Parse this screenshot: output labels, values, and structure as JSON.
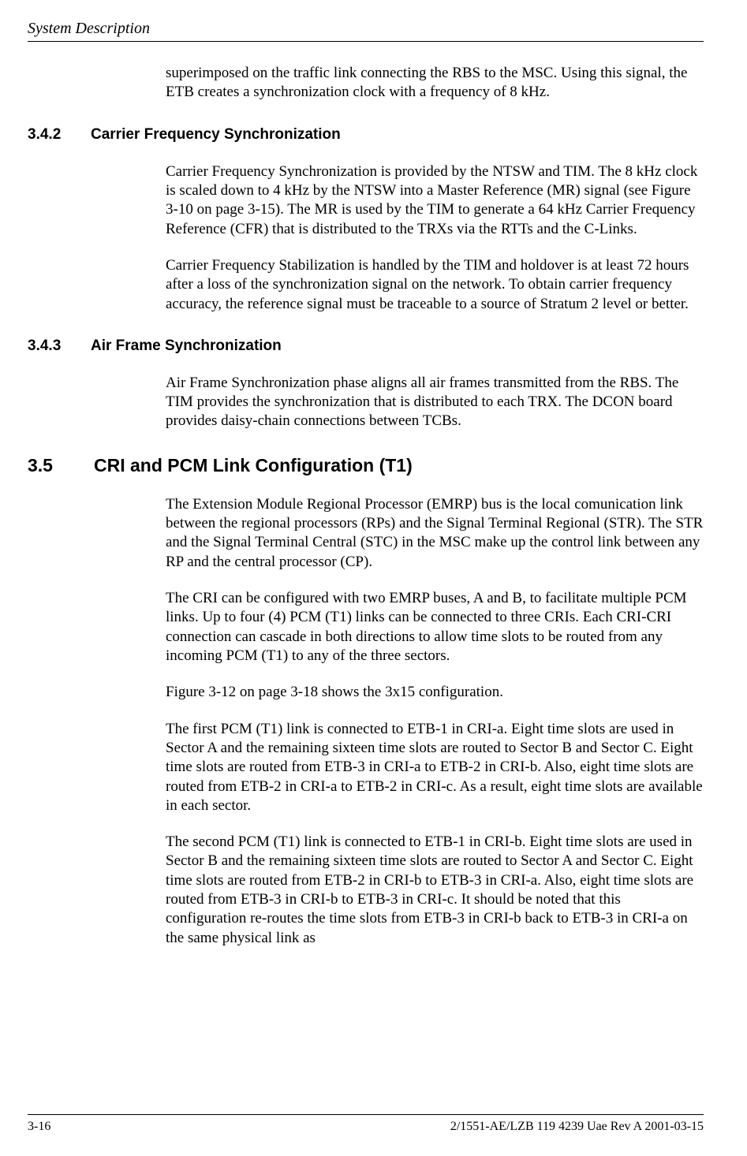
{
  "header": {
    "title": "System Description"
  },
  "p_intro": "superimposed on the traffic link connecting the RBS to the MSC. Using this signal, the ETB creates a synchronization clock with a frequency of 8 kHz.",
  "s342": {
    "num": "3.4.2",
    "title": "Carrier Frequency Synchronization",
    "p1": "Carrier Frequency Synchronization is provided by the NTSW and TIM. The 8 kHz clock is scaled down to 4 kHz by the NTSW into a Master Reference (MR) signal (see Figure 3-10 on page 3-15).  The MR is used by the TIM to generate a 64 kHz Carrier Frequency Reference (CFR) that is distributed to the TRXs via the RTTs and the C-Links.",
    "p2": "Carrier Frequency Stabilization is handled by the TIM and holdover is at least 72 hours after a loss of the synchronization signal on the network.  To obtain carrier frequency accuracy, the reference signal must be traceable to a source of Stratum 2 level or better."
  },
  "s343": {
    "num": "3.4.3",
    "title": "Air Frame Synchronization",
    "p1": "Air Frame Synchronization phase aligns all air frames transmitted from the RBS. The TIM provides the synchronization that is distributed to each TRX. The DCON board provides daisy-chain connections between TCBs."
  },
  "s35": {
    "num": "3.5",
    "title": "CRI and PCM Link Configuration (T1)",
    "p1": "The Extension Module Regional Processor (EMRP) bus is the local comunication link between the regional processors (RPs) and the Signal Terminal Regional (STR). The STR and the Signal Terminal Central (STC) in the MSC make up the control link between any RP and the central processor (CP).",
    "p2": "The CRI can be configured with two EMRP buses, A and B, to facilitate multiple PCM links.  Up to four (4) PCM (T1) links can be connected to three CRIs.  Each CRI-CRI connection can cascade in both directions to allow time slots to be routed from any incoming PCM (T1) to any of the three sectors.",
    "p3": "Figure 3-12 on page 3-18 shows the 3x15 configuration.",
    "p4": "The first PCM (T1) link is connected to ETB-1 in CRI-a.  Eight time slots are used in Sector A and the remaining sixteen time slots are routed to Sector B and Sector C. Eight time slots are routed from ETB-3 in CRI-a to ETB-2 in CRI-b.  Also, eight time slots are routed from ETB-2 in CRI-a to ETB-2 in CRI-c.  As a result, eight time slots are available in each sector.",
    "p5": "The second PCM (T1) link is connected to ETB-1 in CRI-b.  Eight time slots are used in Sector B and the remaining sixteen time slots are routed to Sector A and Sector C. Eight time slots are routed from ETB-2 in CRI-b to ETB-3 in CRI-a.  Also, eight time slots are routed from ETB-3 in CRI-b to ETB-3 in CRI-c.  It should be noted that this configuration re-routes the time slots from ETB-3 in CRI-b back to ETB-3 in CRI-a on the same physical link as"
  },
  "footer": {
    "page": "3-16",
    "docref": "2/1551-AE/LZB 119 4239 Uae Rev A 2001-03-15"
  }
}
